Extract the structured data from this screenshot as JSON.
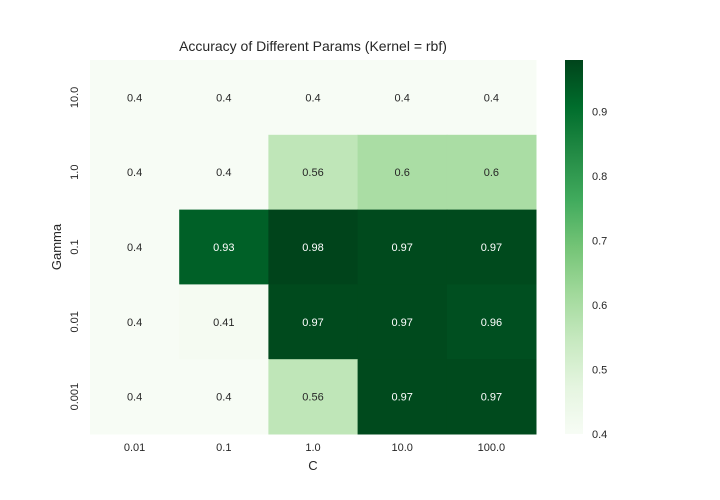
{
  "chart_data": {
    "type": "heatmap",
    "title": "Accuracy of Different Params (Kernel = rbf)",
    "xlabel": "C",
    "ylabel": "Gamma",
    "x_categories": [
      "0.01",
      "0.1",
      "1.0",
      "10.0",
      "100.0"
    ],
    "y_categories": [
      "10.0",
      "1.0",
      "0.1",
      "0.01",
      "0.001"
    ],
    "values": [
      [
        0.4,
        0.4,
        0.4,
        0.4,
        0.4
      ],
      [
        0.4,
        0.4,
        0.56,
        0.6,
        0.6
      ],
      [
        0.4,
        0.93,
        0.98,
        0.97,
        0.97
      ],
      [
        0.4,
        0.41,
        0.97,
        0.97,
        0.96
      ],
      [
        0.4,
        0.4,
        0.56,
        0.97,
        0.97
      ]
    ],
    "annotations": [
      [
        "0.4",
        "0.4",
        "0.4",
        "0.4",
        "0.4"
      ],
      [
        "0.4",
        "0.4",
        "0.56",
        "0.6",
        "0.6"
      ],
      [
        "0.4",
        "0.93",
        "0.98",
        "0.97",
        "0.97"
      ],
      [
        "0.4",
        "0.41",
        "0.97",
        "0.97",
        "0.96"
      ],
      [
        "0.4",
        "0.4",
        "0.56",
        "0.97",
        "0.97"
      ]
    ],
    "colormap": "Greens",
    "colormap_stops": [
      "#f7fcf5",
      "#e5f5e0",
      "#c7e9c0",
      "#a1d99b",
      "#74c476",
      "#41ab5d",
      "#238b45",
      "#006d2c",
      "#00441b"
    ],
    "colorbar": {
      "range": [
        0.4,
        0.98
      ],
      "ticks": [
        "0.4",
        "0.5",
        "0.6",
        "0.7",
        "0.8",
        "0.9"
      ]
    },
    "grid": false,
    "legend": "colorbar-right"
  }
}
